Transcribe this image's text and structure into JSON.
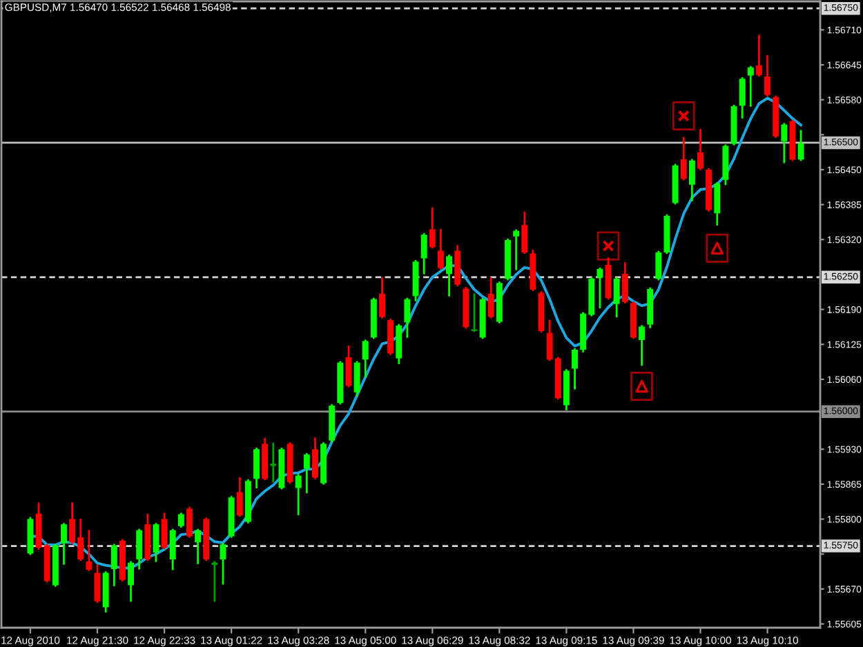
{
  "chart_data": {
    "type": "candlestick",
    "title": "GBPUSD,M7 1.56470 1.56522 1.56468 1.56498",
    "categories": [
      "12 Aug 2010",
      null,
      null,
      null,
      null,
      null,
      null,
      null,
      "12 Aug 21:30",
      null,
      null,
      null,
      null,
      null,
      null,
      null,
      "12 Aug 22:33",
      null,
      null,
      null,
      null,
      null,
      null,
      null,
      "13 Aug 01:22",
      null,
      null,
      null,
      null,
      null,
      null,
      null,
      "13 Aug 03:28",
      null,
      null,
      null,
      null,
      null,
      null,
      null,
      "13 Aug 05:00",
      null,
      null,
      null,
      null,
      null,
      null,
      null,
      "13 Aug 06:29",
      null,
      null,
      null,
      null,
      null,
      null,
      null,
      "13 Aug 08:32",
      null,
      null,
      null,
      null,
      null,
      null,
      null,
      "13 Aug 09:15",
      null,
      null,
      null,
      null,
      null,
      null,
      null,
      "13 Aug 09:39",
      null,
      null,
      null,
      null,
      null,
      null,
      null,
      "13 Aug 10:00",
      null,
      null,
      null,
      null,
      null,
      null,
      null,
      "13 Aug 10:10",
      null,
      null,
      null,
      null
    ],
    "ohlc": [
      [
        1.55737,
        1.55802,
        1.55735,
        1.55799
      ],
      [
        1.55809,
        1.55829,
        1.55745,
        1.55748
      ],
      [
        1.5575,
        1.55752,
        1.55684,
        1.55686
      ],
      [
        1.55678,
        1.55752,
        1.55676,
        1.5575
      ],
      [
        1.55756,
        1.55791,
        1.55717,
        1.55789
      ],
      [
        1.55799,
        1.55829,
        1.55756,
        1.55758
      ],
      [
        1.55765,
        1.55799,
        1.55724,
        1.55726
      ],
      [
        1.5572,
        1.55778,
        1.55705,
        1.55707
      ],
      [
        1.55699,
        1.55714,
        1.55646,
        1.55648
      ],
      [
        1.55637,
        1.55701,
        1.55628,
        1.55699
      ],
      [
        1.55708,
        1.55752,
        1.55677,
        1.5575
      ],
      [
        1.55759,
        1.55761,
        1.55686,
        1.55688
      ],
      [
        1.55678,
        1.5572,
        1.55648,
        1.55718
      ],
      [
        1.55726,
        1.5578,
        1.55708,
        1.55778
      ],
      [
        1.55789,
        1.55808,
        1.55724,
        1.55726
      ],
      [
        1.55739,
        1.55791,
        1.55722,
        1.55789
      ],
      [
        1.55799,
        1.5581,
        1.55746,
        1.55748
      ],
      [
        1.55726,
        1.5578,
        1.55707,
        1.55778
      ],
      [
        1.55788,
        1.5581,
        1.55786,
        1.55808
      ],
      [
        1.55818,
        1.55821,
        1.55767,
        1.55769
      ],
      [
        1.55758,
        1.5578,
        1.55718,
        1.55778
      ],
      [
        1.55799,
        1.55801,
        1.55724,
        1.55726
      ],
      [
        1.55716,
        1.5572,
        1.55648,
        1.55718
      ],
      [
        1.55726,
        1.55754,
        1.5568,
        1.55752
      ],
      [
        1.55769,
        1.55841,
        1.55767,
        1.55839
      ],
      [
        1.55849,
        1.55876,
        1.55806,
        1.55808
      ],
      [
        1.55796,
        1.55872,
        1.55794,
        1.5587
      ],
      [
        1.55876,
        1.55931,
        1.55859,
        1.55929
      ],
      [
        1.55939,
        1.55949,
        1.55874,
        1.55876
      ],
      [
        1.559,
        1.5594,
        1.5587,
        1.55902
      ],
      [
        1.55859,
        1.55931,
        1.55857,
        1.55929
      ],
      [
        1.55939,
        1.55941,
        1.55868,
        1.5587
      ],
      [
        1.55859,
        1.55882,
        1.55809,
        1.5588
      ],
      [
        1.55895,
        1.55921,
        1.5585,
        1.55919
      ],
      [
        1.55929,
        1.5595,
        1.55876,
        1.55878
      ],
      [
        1.55868,
        1.55941,
        1.55866,
        1.55939
      ],
      [
        1.55947,
        1.56012,
        1.55945,
        1.5601
      ],
      [
        1.56017,
        1.56092,
        1.56015,
        1.5609
      ],
      [
        1.561,
        1.56121,
        1.56047,
        1.56049
      ],
      [
        1.56037,
        1.56092,
        1.5603,
        1.5609
      ],
      [
        1.56098,
        1.56132,
        1.56065,
        1.5613
      ],
      [
        1.56139,
        1.5621,
        1.56137,
        1.56208
      ],
      [
        1.56218,
        1.56248,
        1.56175,
        1.56177
      ],
      [
        1.56169,
        1.56171,
        1.56107,
        1.56109
      ],
      [
        1.561,
        1.56161,
        1.5609,
        1.56159
      ],
      [
        1.56167,
        1.5621,
        1.56139,
        1.56208
      ],
      [
        1.56216,
        1.5628,
        1.56207,
        1.56278
      ],
      [
        1.56286,
        1.5633,
        1.56257,
        1.56328
      ],
      [
        1.56338,
        1.56378,
        1.56305,
        1.56307
      ],
      [
        1.56298,
        1.56338,
        1.56266,
        1.56268
      ],
      [
        1.56257,
        1.5629,
        1.56216,
        1.56288
      ],
      [
        1.56298,
        1.56308,
        1.56235,
        1.56237
      ],
      [
        1.56228,
        1.5623,
        1.56156,
        1.56158
      ],
      [
        1.56151,
        1.56218,
        1.5615,
        1.56152
      ],
      [
        1.56139,
        1.5621,
        1.56137,
        1.56208
      ],
      [
        1.56218,
        1.56248,
        1.56175,
        1.56177
      ],
      [
        1.56168,
        1.5624,
        1.56166,
        1.56238
      ],
      [
        1.56248,
        1.5632,
        1.56246,
        1.56318
      ],
      [
        1.56327,
        1.56337,
        1.56265,
        1.56335
      ],
      [
        1.56346,
        1.5637,
        1.56295,
        1.56297
      ],
      [
        1.56293,
        1.56299,
        1.56226,
        1.56228
      ],
      [
        1.5622,
        1.56222,
        1.56149,
        1.56151
      ],
      [
        1.56145,
        1.56169,
        1.56096,
        1.56098
      ],
      [
        1.56098,
        1.561,
        1.56024,
        1.56026
      ],
      [
        1.56013,
        1.56077,
        1.56004,
        1.56075
      ],
      [
        1.56081,
        1.56116,
        1.56043,
        1.56114
      ],
      [
        1.56116,
        1.56183,
        1.56112,
        1.56181
      ],
      [
        1.56181,
        1.56248,
        1.56179,
        1.56246
      ],
      [
        1.5625,
        1.56266,
        1.56194,
        1.56264
      ],
      [
        1.56272,
        1.56285,
        1.5621,
        1.56212
      ],
      [
        1.56201,
        1.56248,
        1.56177,
        1.56246
      ],
      [
        1.56255,
        1.56276,
        1.56203,
        1.56205
      ],
      [
        1.56201,
        1.56203,
        1.56137,
        1.56139
      ],
      [
        1.56134,
        1.56159,
        1.56087,
        1.56157
      ],
      [
        1.56163,
        1.56229,
        1.56157,
        1.56227
      ],
      [
        1.56248,
        1.56297,
        1.56246,
        1.56295
      ],
      [
        1.56297,
        1.56365,
        1.56295,
        1.56363
      ],
      [
        1.56389,
        1.56459,
        1.56387,
        1.56457
      ],
      [
        1.56468,
        1.56509,
        1.56432,
        1.56434
      ],
      [
        1.56423,
        1.56468,
        1.56393,
        1.56466
      ],
      [
        1.56481,
        1.56524,
        1.56451,
        1.56453
      ],
      [
        1.56449,
        1.56451,
        1.56374,
        1.56376
      ],
      [
        1.5637,
        1.56425,
        1.56348,
        1.56423
      ],
      [
        1.56432,
        1.56495,
        1.56423,
        1.56493
      ],
      [
        1.56499,
        1.56569,
        1.56497,
        1.56567
      ],
      [
        1.5657,
        1.5662,
        1.56547,
        1.56618
      ],
      [
        1.56626,
        1.56641,
        1.56569,
        1.56639
      ],
      [
        1.56643,
        1.56699,
        1.56625,
        1.56627
      ],
      [
        1.56622,
        1.56661,
        1.56588,
        1.5659
      ],
      [
        1.56584,
        1.56586,
        1.56511,
        1.56513
      ],
      [
        1.56504,
        1.56535,
        1.56464,
        1.56533
      ],
      [
        1.56539,
        1.56541,
        1.56468,
        1.5647
      ],
      [
        1.5647,
        1.56522,
        1.56468,
        1.56498
      ]
    ],
    "colors": [
      "#00ff00",
      "#ff0000",
      "#ff0000",
      "#00ff00",
      "#00ff00",
      "#ff0000",
      "#ff0000",
      "#ff0000",
      "#ff0000",
      "#00ff00",
      "#00ff00",
      "#ff0000",
      "#00ff00",
      "#00ff00",
      "#ff0000",
      "#00ff00",
      "#ff0000",
      "#00ff00",
      "#00ff00",
      "#ff0000",
      "#00ff00",
      "#ff0000",
      "#00a000",
      "#00ff00",
      "#00ff00",
      "#ff0000",
      "#00ff00",
      "#00ff00",
      "#ff0000",
      "#00a000",
      "#00ff00",
      "#ff0000",
      "#00ff00",
      "#00ff00",
      "#ff0000",
      "#00ff00",
      "#00ff00",
      "#00ff00",
      "#ff0000",
      "#00ff00",
      "#00ff00",
      "#00ff00",
      "#ff0000",
      "#ff0000",
      "#00ff00",
      "#00ff00",
      "#00ff00",
      "#00ff00",
      "#ff0000",
      "#ff0000",
      "#00ff00",
      "#ff0000",
      "#ff0000",
      "#00a000",
      "#00ff00",
      "#ff0000",
      "#00ff00",
      "#00ff00",
      "#00ff00",
      "#ff0000",
      "#ff0000",
      "#ff0000",
      "#ff0000",
      "#ff0000",
      "#00ff00",
      "#00ff00",
      "#00ff00",
      "#00ff00",
      "#00ff00",
      "#ff0000",
      "#00ff00",
      "#ff0000",
      "#ff0000",
      "#00ff00",
      "#00ff00",
      "#00ff00",
      "#00ff00",
      "#00ff00",
      "#ff0000",
      "#00ff00",
      "#ff0000",
      "#ff0000",
      "#00ff00",
      "#00ff00",
      "#00ff00",
      "#00ff00",
      "#00ff00",
      "#ff0000",
      "#ff0000",
      "#ff0000",
      "#00ff00",
      "#ff0000",
      "#00ff00"
    ],
    "ylim": [
      1.55598,
      1.56763
    ],
    "yticks": [
      {
        "value": 1.5671,
        "label": "1.56710"
      },
      {
        "value": 1.56645,
        "label": "1.56645"
      },
      {
        "value": 1.5658,
        "label": "1.56580"
      },
      {
        "value": 1.56515,
        "label": null
      },
      {
        "value": 1.5645,
        "label": "1.56450"
      },
      {
        "value": 1.56385,
        "label": "1.56385"
      },
      {
        "value": 1.5632,
        "label": "1.56320"
      },
      {
        "value": 1.5619,
        "label": "1.56190"
      },
      {
        "value": 1.56125,
        "label": "1.56125"
      },
      {
        "value": 1.5606,
        "label": "1.56060"
      },
      {
        "value": 1.5593,
        "label": "1.55930"
      },
      {
        "value": 1.55865,
        "label": "1.55865"
      },
      {
        "value": 1.558,
        "label": "1.55800"
      },
      {
        "value": 1.55735,
        "label": null
      },
      {
        "value": 1.5567,
        "label": "1.55670"
      },
      {
        "value": 1.55605,
        "label": "1.55605"
      }
    ],
    "ref_lines": [
      {
        "axis": "y",
        "value": 1.5675,
        "label": "1.56750",
        "color": "#d8d8d8",
        "line_style": "dashed"
      },
      {
        "axis": "y",
        "value": 1.565,
        "label": "1.56500",
        "color": "#c0c0c0",
        "line_style": "solid"
      },
      {
        "axis": "y",
        "value": 1.5625,
        "label": "1.56250",
        "color": "#d8d8d8",
        "line_style": "dashed"
      },
      {
        "axis": "y",
        "value": 1.56,
        "label": "1.56000",
        "color": "#8c8c8c",
        "line_style": "solid"
      },
      {
        "axis": "y",
        "value": 1.5575,
        "label": "1.55750",
        "color": "#d8d8d8",
        "line_style": "dashed"
      }
    ],
    "series": [
      {
        "type": "line",
        "color": "#1fa8e0",
        "values": [
          1.55769,
          1.55767,
          1.55752,
          1.55752,
          1.55758,
          1.55756,
          1.55748,
          1.55735,
          1.55718,
          1.55714,
          1.55712,
          1.55709,
          1.55709,
          1.55718,
          1.55729,
          1.55735,
          1.55744,
          1.55755,
          1.55771,
          1.55773,
          1.55778,
          1.55769,
          1.55758,
          1.55756,
          1.55773,
          1.55786,
          1.55808,
          1.55838,
          1.55852,
          1.55863,
          1.5588,
          1.55885,
          1.55886,
          1.55893,
          1.55893,
          1.5591,
          1.55944,
          1.55974,
          1.55996,
          1.5603,
          1.56064,
          1.56098,
          1.56126,
          1.5613,
          1.56141,
          1.56163,
          1.56197,
          1.56227,
          1.5625,
          1.56261,
          1.56272,
          1.56271,
          1.56248,
          1.56227,
          1.56214,
          1.56204,
          1.56209,
          1.56235,
          1.56255,
          1.56268,
          1.56265,
          1.56244,
          1.56209,
          1.56168,
          1.56137,
          1.56122,
          1.56128,
          1.5615,
          1.56175,
          1.56194,
          1.56209,
          1.56216,
          1.56205,
          1.56197,
          1.56201,
          1.56227,
          1.56269,
          1.56321,
          1.56368,
          1.56398,
          1.56413,
          1.56415,
          1.56423,
          1.5644,
          1.5647,
          1.56509,
          1.56545,
          1.56573,
          1.56583,
          1.56575,
          1.5656,
          1.56545,
          1.56533
        ]
      },
      {
        "type": "scatter",
        "marker": "cross",
        "color": "#e00000",
        "values": [
          null,
          null,
          null,
          null,
          null,
          null,
          null,
          null,
          null,
          null,
          null,
          null,
          null,
          null,
          null,
          null,
          null,
          null,
          null,
          null,
          null,
          null,
          null,
          null,
          null,
          null,
          null,
          null,
          null,
          null,
          null,
          null,
          null,
          null,
          null,
          null,
          null,
          null,
          null,
          null,
          null,
          null,
          null,
          null,
          null,
          null,
          null,
          null,
          null,
          null,
          null,
          null,
          null,
          null,
          null,
          null,
          null,
          null,
          null,
          null,
          null,
          null,
          null,
          null,
          null,
          null,
          null,
          null,
          null,
          1.56308,
          null,
          null,
          null,
          null,
          null,
          null,
          null,
          null,
          1.5655,
          null,
          null,
          null,
          null,
          null,
          null,
          null,
          null,
          null,
          null,
          null,
          null,
          null,
          null
        ]
      },
      {
        "type": "scatter",
        "marker": "triangle",
        "color": "#e00000",
        "values": [
          null,
          null,
          null,
          null,
          null,
          null,
          null,
          null,
          null,
          null,
          null,
          null,
          null,
          null,
          null,
          null,
          null,
          null,
          null,
          null,
          null,
          null,
          null,
          null,
          null,
          null,
          null,
          null,
          null,
          null,
          null,
          null,
          null,
          null,
          null,
          null,
          null,
          null,
          null,
          null,
          null,
          null,
          null,
          null,
          null,
          null,
          null,
          null,
          null,
          null,
          null,
          null,
          null,
          null,
          null,
          null,
          null,
          null,
          null,
          null,
          null,
          null,
          null,
          null,
          null,
          null,
          null,
          null,
          null,
          null,
          null,
          null,
          null,
          1.56047,
          null,
          null,
          null,
          null,
          null,
          null,
          null,
          null,
          1.56304,
          null,
          null,
          null,
          null,
          null,
          null,
          null,
          null,
          null,
          null
        ]
      }
    ]
  }
}
